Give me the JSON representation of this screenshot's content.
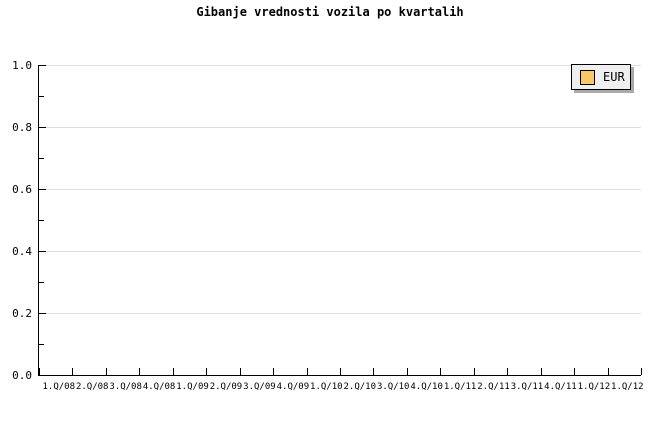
{
  "window": {
    "background": "#FFFFFF"
  },
  "chart_data": {
    "type": "line",
    "title": "Gibanje vrednosti vozila po kvartalih",
    "categories": [
      "1.Q/08",
      "2.Q/08",
      "3.Q/08",
      "4.Q/08",
      "1.Q/09",
      "2.Q/09",
      "3.Q/09",
      "4.Q/09",
      "1.Q/10",
      "2.Q/10",
      "3.Q/10",
      "4.Q/10",
      "1.Q/11",
      "2.Q/11",
      "3.Q/11",
      "4.Q/11",
      "1.Q/12",
      "1.Q/12"
    ],
    "series": [
      {
        "name": "EUR",
        "color": "#FAC868",
        "values": []
      }
    ],
    "xlabel": "",
    "ylabel": "",
    "ylim": [
      0.0,
      1.0
    ],
    "y_ticks": [
      {
        "value": 1.0,
        "label": "1.0"
      },
      {
        "value": 0.8,
        "label": "0.8"
      },
      {
        "value": 0.6,
        "label": "0.6"
      },
      {
        "value": 0.4,
        "label": "0.4"
      },
      {
        "value": 0.2,
        "label": "0.2"
      },
      {
        "value": 0.0,
        "label": "0.0"
      }
    ],
    "y_minor_ticks": [
      0.9,
      0.7,
      0.5,
      0.3,
      0.1
    ],
    "grid": "horizontal-major",
    "legend_position": "top-right"
  },
  "legend": {
    "entries": [
      {
        "label": "EUR",
        "swatch_color": "#FAC868"
      }
    ]
  },
  "colors": {
    "axis": "#000000",
    "grid": "#DDDDDD",
    "text": "#000000",
    "legend_background": "#EFEFEF",
    "legend_border": "#000000",
    "legend_shadow": "#A9A9A9"
  }
}
